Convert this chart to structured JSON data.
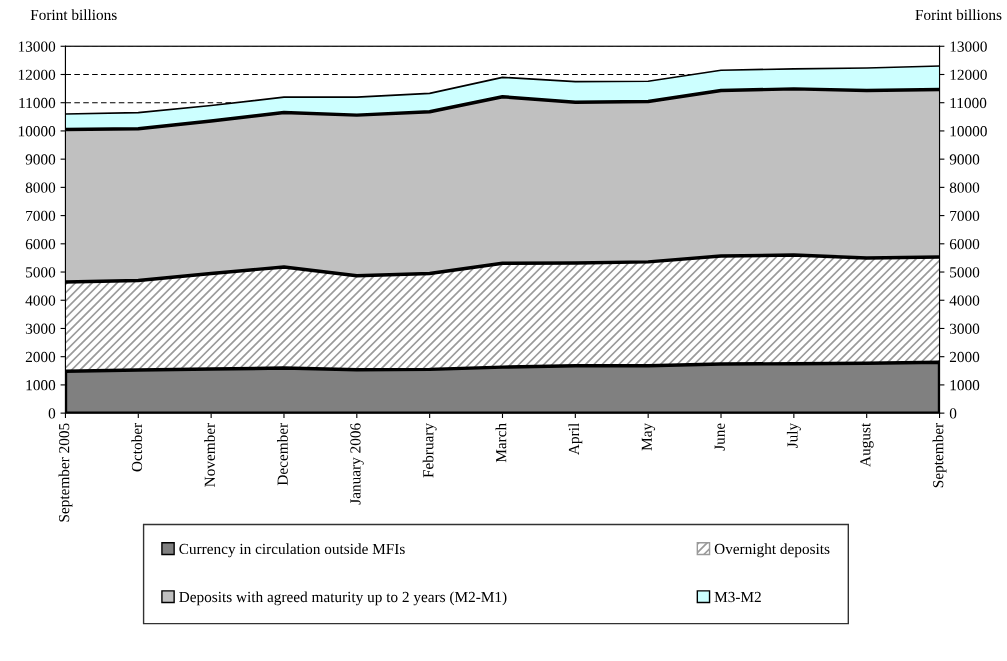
{
  "chart_data": {
    "type": "area",
    "stacked": true,
    "categories": [
      "September 2005",
      "October",
      "November",
      "December",
      "January 2006",
      "February",
      "March",
      "April",
      "May",
      "June",
      "July",
      "August",
      "September"
    ],
    "series": [
      {
        "name": "Currency in circulation outside MFIs",
        "color": "#808080",
        "values": [
          1480,
          1530,
          1560,
          1600,
          1540,
          1550,
          1630,
          1680,
          1680,
          1740,
          1750,
          1770,
          1800
        ]
      },
      {
        "name": "Overnight deposits",
        "color": "#9a9a9a",
        "values": [
          3170,
          3170,
          3390,
          3580,
          3330,
          3400,
          3680,
          3640,
          3680,
          3830,
          3850,
          3730,
          3730
        ]
      },
      {
        "name": "Deposits with agreed maturity up to 2 years (M2-M1)",
        "color": "#c0c0c0",
        "values": [
          5400,
          5380,
          5400,
          5470,
          5690,
          5730,
          5900,
          5700,
          5680,
          5860,
          5890,
          5930,
          5940
        ]
      },
      {
        "name": "M3-M2",
        "color": "#ccffff",
        "values": [
          550,
          570,
          550,
          550,
          640,
          650,
          690,
          730,
          720,
          720,
          710,
          800,
          830
        ]
      }
    ],
    "ylabel": "Forint billions",
    "y2label": "Forint billions",
    "ylim": [
      0,
      13000
    ],
    "yticks": [
      0,
      1000,
      2000,
      3000,
      4000,
      5000,
      6000,
      7000,
      8000,
      9000,
      10000,
      11000,
      12000,
      13000
    ],
    "y2lim": [
      0,
      13000
    ],
    "y2ticks": [
      0,
      1000,
      2000,
      3000,
      4000,
      5000,
      6000,
      7000,
      8000,
      9000,
      10000,
      11000,
      12000,
      13000
    ],
    "grid": "y",
    "line_style": "dashed",
    "legend": "bottom"
  }
}
